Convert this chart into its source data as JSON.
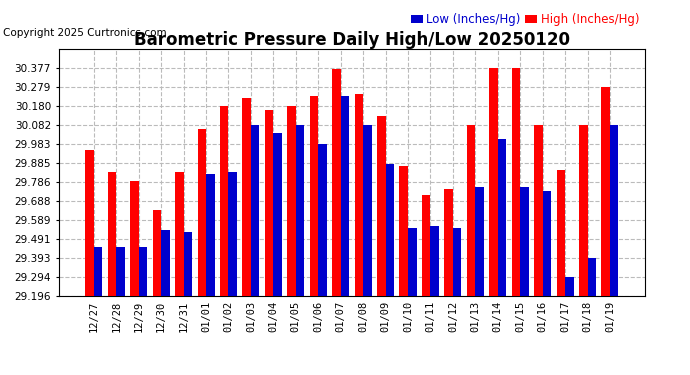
{
  "title": "Barometric Pressure Daily High/Low 20250120",
  "copyright": "Copyright 2025 Curtronics.com",
  "legend_low": "Low (Inches/Hg)",
  "legend_high": "High (Inches/Hg)",
  "dates": [
    "12/27",
    "12/28",
    "12/29",
    "12/30",
    "12/31",
    "01/01",
    "01/02",
    "01/03",
    "01/04",
    "01/05",
    "01/06",
    "01/07",
    "01/08",
    "01/09",
    "01/10",
    "01/11",
    "01/12",
    "01/13",
    "01/14",
    "01/15",
    "01/16",
    "01/17",
    "01/18",
    "01/19"
  ],
  "high_values": [
    29.95,
    29.84,
    29.79,
    29.64,
    29.84,
    30.06,
    30.18,
    30.22,
    30.16,
    30.18,
    30.23,
    30.37,
    30.24,
    30.13,
    29.87,
    29.72,
    29.75,
    30.082,
    30.377,
    30.377,
    30.082,
    29.85,
    30.082,
    30.279
  ],
  "low_values": [
    29.45,
    29.45,
    29.45,
    29.54,
    29.53,
    29.83,
    29.84,
    30.082,
    30.04,
    30.082,
    29.983,
    30.23,
    30.082,
    29.88,
    29.55,
    29.56,
    29.55,
    29.76,
    30.01,
    29.76,
    29.74,
    29.295,
    29.393,
    30.082
  ],
  "ylim_min": 29.196,
  "ylim_max": 30.475,
  "yticks": [
    29.196,
    29.294,
    29.393,
    29.491,
    29.589,
    29.688,
    29.786,
    29.885,
    29.983,
    30.082,
    30.18,
    30.279,
    30.377
  ],
  "bar_width": 0.38,
  "high_color": "#ff0000",
  "low_color": "#0000cc",
  "background_color": "#ffffff",
  "grid_color": "#bbbbbb",
  "title_fontsize": 12,
  "tick_fontsize": 7.5,
  "legend_fontsize": 8.5,
  "copyright_fontsize": 7.5
}
